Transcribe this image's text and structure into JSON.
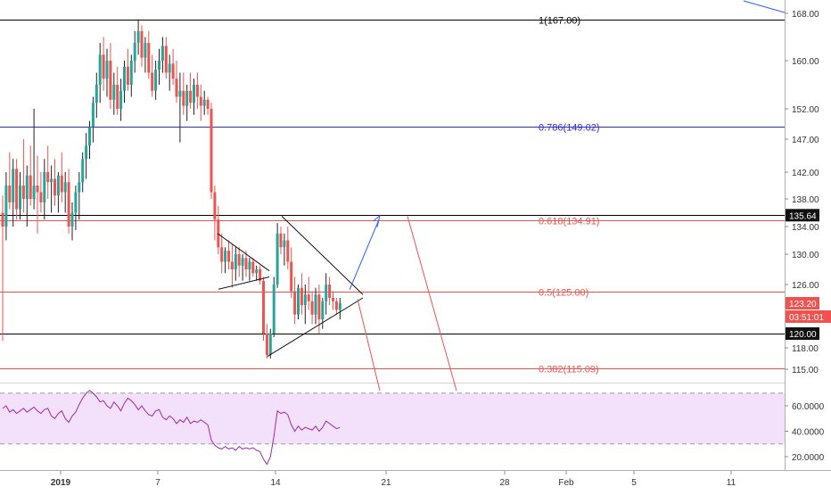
{
  "colors": {
    "up": "#26a69a",
    "down": "#ef5350",
    "up_wick": "#222222",
    "fib_black": "#000000",
    "fib_blue": "#2a2ae8",
    "fib_red": "#ef5350",
    "rsi_line": "#9c27b0",
    "rsi_band": "#f3e0fb",
    "axis_text": "#333333",
    "arrow_blue": "#2962ff",
    "arrow_red": "#ef5350"
  },
  "chart_data": [
    {
      "type": "candlestick",
      "title": "",
      "x_ticks": [
        "2019",
        "7",
        "14",
        "21",
        "28",
        "Feb",
        "5",
        "11"
      ],
      "y_ticks": [
        168.0,
        160.0,
        152.0,
        147.0,
        142.0,
        138.0,
        134.0,
        130.0,
        126.0,
        123.2,
        120.0,
        118.0,
        115.0
      ],
      "y_tick_labels": [
        "168.00",
        "160.00",
        "152.00",
        "147.00",
        "142.00",
        "138.00",
        "134.00",
        "130.00",
        "126.00",
        "118.00",
        "115.00"
      ],
      "price_badges": [
        {
          "label": "135.64",
          "value": 135.64,
          "style": "dark"
        },
        {
          "label": "123.20",
          "value": 123.2,
          "style": "red"
        },
        {
          "label": "03:51:01",
          "value": 121.9,
          "style": "red"
        },
        {
          "label": "120.00",
          "value": 120.0,
          "style": "dark"
        }
      ],
      "fib_levels": [
        {
          "label": "1(167.00)",
          "value": 167.0,
          "color": "black"
        },
        {
          "label": "0.786(149.02)",
          "value": 149.02,
          "color": "blue"
        },
        {
          "label": "0.618(134.91)",
          "value": 134.91,
          "color": "red"
        },
        {
          "label": "0.5(125.00)",
          "value": 125.0,
          "color": "red"
        },
        {
          "label": "0.382(115.09)",
          "value": 115.09,
          "color": "red"
        }
      ],
      "horizontal_lines": [
        {
          "value": 135.64,
          "color": "black"
        },
        {
          "value": 120.0,
          "color": "black"
        }
      ],
      "candles_ohlc": [
        [
          136.0,
          138.5,
          119.0,
          134.0
        ],
        [
          134.0,
          142.0,
          132.0,
          140.0
        ],
        [
          140.0,
          145.0,
          136.5,
          137.5
        ],
        [
          137.5,
          144.0,
          134.0,
          142.5
        ],
        [
          142.5,
          144.0,
          135.0,
          136.5
        ],
        [
          136.5,
          142.0,
          135.0,
          140.0
        ],
        [
          140.0,
          147.0,
          136.0,
          138.0
        ],
        [
          138.0,
          143.0,
          134.0,
          141.5
        ],
        [
          141.5,
          146.0,
          137.0,
          138.0
        ],
        [
          138.0,
          152.0,
          136.5,
          140.0
        ],
        [
          140.0,
          144.5,
          133.0,
          139.0
        ],
        [
          139.0,
          142.0,
          136.0,
          137.5
        ],
        [
          137.5,
          144.0,
          135.0,
          142.0
        ],
        [
          142.0,
          146.0,
          138.0,
          140.5
        ],
        [
          140.5,
          143.0,
          136.0,
          141.0
        ],
        [
          141.0,
          144.0,
          137.0,
          138.5
        ],
        [
          138.5,
          142.0,
          136.0,
          141.5
        ],
        [
          141.5,
          145.0,
          137.5,
          139.0
        ],
        [
          139.0,
          142.0,
          136.0,
          140.5
        ],
        [
          140.5,
          142.5,
          133.0,
          134.0
        ],
        [
          134.0,
          137.5,
          132.0,
          136.0
        ],
        [
          136.0,
          140.0,
          133.5,
          139.0
        ],
        [
          139.0,
          142.0,
          135.0,
          140.5
        ],
        [
          140.5,
          145.0,
          139.0,
          144.0
        ],
        [
          144.0,
          148.0,
          141.0,
          146.0
        ],
        [
          146.0,
          150.0,
          144.0,
          149.0
        ],
        [
          149.0,
          154.0,
          146.5,
          153.0
        ],
        [
          153.0,
          158.0,
          150.5,
          156.0
        ],
        [
          156.0,
          163.0,
          153.0,
          161.0
        ],
        [
          161.0,
          164.0,
          155.0,
          157.0
        ],
        [
          157.0,
          162.0,
          154.0,
          160.0
        ],
        [
          160.0,
          163.0,
          152.0,
          153.5
        ],
        [
          153.5,
          158.0,
          151.0,
          156.0
        ],
        [
          156.0,
          159.0,
          151.0,
          152.0
        ],
        [
          152.0,
          157.0,
          150.0,
          155.0
        ],
        [
          155.0,
          160.0,
          153.0,
          159.0
        ],
        [
          159.0,
          162.0,
          155.0,
          156.0
        ],
        [
          156.0,
          161.0,
          154.0,
          160.0
        ],
        [
          160.0,
          165.0,
          158.0,
          163.0
        ],
        [
          163.0,
          167.0,
          161.0,
          165.0
        ],
        [
          165.0,
          166.0,
          159.0,
          160.5
        ],
        [
          160.5,
          164.0,
          158.0,
          163.0
        ],
        [
          163.0,
          165.0,
          157.0,
          158.0
        ],
        [
          158.0,
          161.0,
          154.0,
          155.0
        ],
        [
          155.0,
          160.0,
          153.5,
          158.5
        ],
        [
          158.5,
          162.0,
          156.0,
          160.0
        ],
        [
          160.0,
          164.0,
          158.0,
          162.5
        ],
        [
          162.5,
          164.0,
          157.0,
          158.0
        ],
        [
          158.0,
          161.0,
          155.0,
          159.5
        ],
        [
          159.5,
          162.0,
          156.0,
          157.0
        ],
        [
          157.0,
          160.0,
          153.0,
          154.0
        ],
        [
          154.0,
          158.0,
          146.5,
          155.0
        ],
        [
          155.0,
          158.0,
          151.0,
          152.5
        ],
        [
          152.5,
          156.0,
          150.0,
          155.0
        ],
        [
          155.0,
          158.0,
          152.0,
          153.0
        ],
        [
          153.0,
          157.0,
          151.0,
          156.0
        ],
        [
          156.0,
          158.0,
          152.0,
          154.0
        ],
        [
          154.0,
          156.0,
          150.0,
          152.5
        ],
        [
          152.5,
          155.0,
          151.0,
          153.5
        ],
        [
          153.5,
          154.0,
          151.0,
          152.0
        ],
        [
          152.0,
          153.0,
          138.0,
          139.0
        ],
        [
          139.0,
          140.0,
          132.0,
          135.0
        ],
        [
          135.0,
          137.0,
          130.0,
          131.0
        ],
        [
          131.0,
          133.0,
          127.5,
          129.0
        ],
        [
          129.0,
          131.0,
          127.5,
          130.5
        ],
        [
          130.5,
          132.0,
          128.0,
          129.0
        ],
        [
          129.0,
          131.5,
          125.5,
          128.0
        ],
        [
          128.0,
          131.0,
          126.5,
          130.0
        ],
        [
          130.0,
          131.0,
          127.0,
          128.5
        ],
        [
          128.5,
          130.0,
          126.5,
          129.5
        ],
        [
          129.5,
          130.5,
          127.0,
          128.0
        ],
        [
          128.0,
          129.5,
          126.5,
          129.0
        ],
        [
          129.0,
          129.5,
          127.0,
          127.5
        ],
        [
          127.5,
          128.5,
          126.5,
          128.0
        ],
        [
          128.0,
          128.5,
          126.0,
          126.5
        ],
        [
          126.5,
          127.0,
          119.0,
          120.0
        ],
        [
          120.0,
          121.0,
          116.5,
          117.0
        ],
        [
          117.0,
          120.5,
          116.5,
          120.0
        ],
        [
          120.0,
          127.0,
          119.5,
          126.0
        ],
        [
          126.0,
          134.5,
          125.5,
          133.0
        ],
        [
          133.0,
          134.0,
          130.0,
          131.0
        ],
        [
          131.0,
          133.0,
          128.5,
          132.0
        ],
        [
          132.0,
          134.0,
          128.0,
          129.0
        ],
        [
          129.0,
          131.0,
          124.0,
          125.0
        ],
        [
          125.0,
          127.0,
          121.0,
          122.0
        ],
        [
          122.0,
          126.0,
          121.5,
          125.5
        ],
        [
          125.5,
          127.5,
          122.0,
          123.0
        ],
        [
          123.0,
          126.0,
          121.0,
          124.5
        ],
        [
          124.5,
          127.0,
          122.5,
          123.5
        ],
        [
          123.5,
          125.0,
          121.0,
          122.0
        ],
        [
          122.0,
          125.5,
          121.0,
          124.5
        ],
        [
          124.5,
          126.0,
          120.0,
          121.5
        ],
        [
          121.5,
          124.0,
          120.5,
          123.5
        ],
        [
          123.5,
          127.5,
          122.0,
          126.0
        ],
        [
          126.0,
          127.0,
          123.0,
          124.0
        ],
        [
          124.0,
          125.0,
          122.5,
          123.5
        ],
        [
          123.5,
          124.0,
          122.0,
          122.5
        ],
        [
          122.5,
          124.0,
          121.5,
          123.2
        ]
      ]
    },
    {
      "type": "line",
      "title": "",
      "y_ticks": [
        60.0,
        40.0,
        20.0
      ],
      "y_tick_labels": [
        "60.0000",
        "40.0000",
        "20.0000"
      ],
      "band": [
        30,
        70
      ],
      "values": [
        58,
        60,
        55,
        57,
        54,
        56,
        58,
        55,
        57,
        59,
        56,
        54,
        57,
        58,
        52,
        50,
        54,
        56,
        50,
        47,
        52,
        55,
        61,
        66,
        70,
        72,
        70,
        67,
        63,
        64,
        60,
        58,
        63,
        60,
        56,
        62,
        66,
        64,
        61,
        57,
        60,
        56,
        53,
        52,
        56,
        57,
        51,
        49,
        52,
        50,
        46,
        49,
        47,
        51,
        46,
        48,
        47,
        49,
        47,
        45,
        33,
        29,
        27,
        26,
        28,
        26,
        27,
        25,
        28,
        26,
        27,
        26,
        27,
        25,
        24,
        18,
        14,
        20,
        36,
        56,
        54,
        55,
        53,
        45,
        40,
        44,
        41,
        43,
        42,
        41,
        44,
        40,
        43,
        48,
        46,
        44,
        42,
        43
      ]
    }
  ]
}
